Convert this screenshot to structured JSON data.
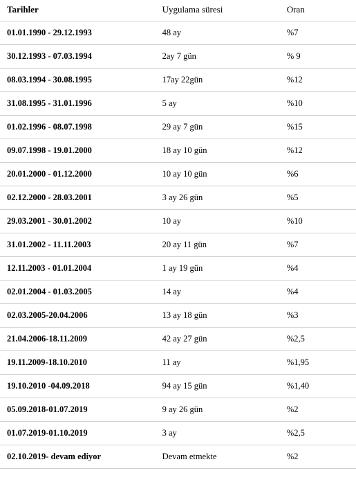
{
  "table": {
    "headers": {
      "dates": "Tarihler",
      "duration": "Uygulama süresi",
      "rate": "Oran"
    },
    "rows": [
      {
        "dates": "01.01.1990 - 29.12.1993",
        "duration": "48 ay",
        "rate": "%7"
      },
      {
        "dates": "30.12.1993 - 07.03.1994",
        "duration": "2ay 7 gün",
        "rate": "% 9"
      },
      {
        "dates": "08.03.1994 - 30.08.1995",
        "duration": "17ay 22gün",
        "rate": "%12"
      },
      {
        "dates": "31.08.1995 - 31.01.1996",
        "duration": "5 ay",
        "rate": "%10"
      },
      {
        "dates": "01.02.1996 - 08.07.1998",
        "duration": "29 ay 7 gün",
        "rate": "%15"
      },
      {
        "dates": "09.07.1998 - 19.01.2000",
        "duration": "18 ay 10 gün",
        "rate": "%12"
      },
      {
        "dates": "20.01.2000 - 01.12.2000",
        "duration": "10 ay 10 gün",
        "rate": "%6"
      },
      {
        "dates": "02.12.2000 - 28.03.2001",
        "duration": "3 ay 26 gün",
        "rate": "%5"
      },
      {
        "dates": "29.03.2001 - 30.01.2002",
        "duration": "10 ay",
        "rate": "%10"
      },
      {
        "dates": "31.01.2002 - 11.11.2003",
        "duration": "20 ay 11 gün",
        "rate": "%7"
      },
      {
        "dates": "12.11.2003 - 01.01.2004",
        "duration": "1 ay 19 gün",
        "rate": "%4"
      },
      {
        "dates": "02.01.2004 - 01.03.2005",
        "duration": "14 ay",
        "rate": "%4"
      },
      {
        "dates": "02.03.2005-20.04.2006",
        "duration": "13 ay 18 gün",
        "rate": "%3"
      },
      {
        "dates": "21.04.2006-18.11.2009",
        "duration": "42 ay 27 gün",
        "rate": "%2,5"
      },
      {
        "dates": "19.11.2009-18.10.2010",
        "duration": "11 ay",
        "rate": "%1,95"
      },
      {
        "dates": "19.10.2010 -04.09.2018",
        "duration": "94 ay 15 gün",
        "rate": "%1,40"
      },
      {
        "dates": "05.09.2018-01.07.2019",
        "duration": "9 ay 26 gün",
        "rate": "%2"
      },
      {
        "dates": "01.07.2019-01.10.2019",
        "duration": "3 ay",
        "rate": "%2,5"
      },
      {
        "dates": "02.10.2019- devam ediyor",
        "duration": "Devam etmekte",
        "rate": "%2"
      }
    ],
    "styling": {
      "font_family": "Times New Roman",
      "header_fontsize": 13,
      "cell_fontsize": 12.5,
      "header_fontweight": "bold",
      "dates_column_fontweight": "bold",
      "border_color": "#d0d0d0",
      "background_color": "#ffffff",
      "text_color": "#000000",
      "column_widths": [
        "44%",
        "35%",
        "21%"
      ]
    }
  }
}
